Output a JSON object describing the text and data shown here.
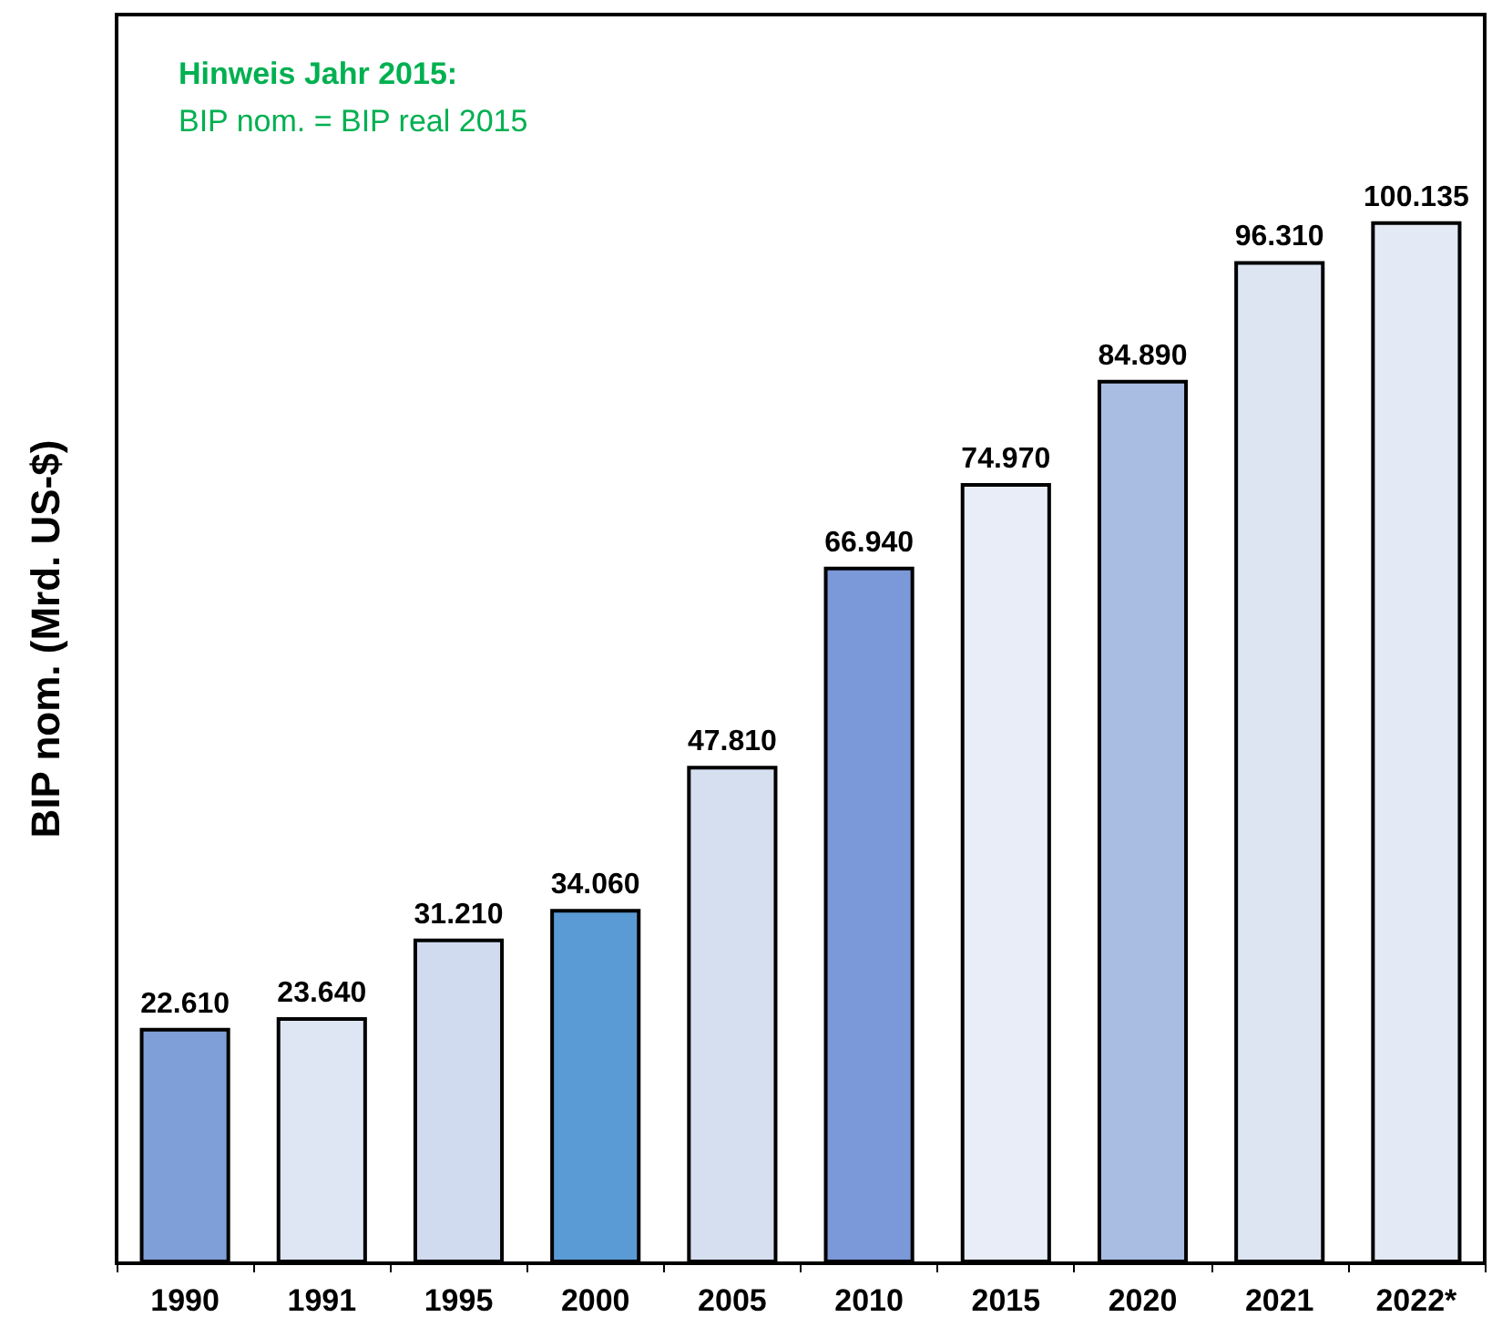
{
  "chart_data": {
    "type": "bar",
    "ylabel": "BIP nom. (Mrd. US-$)",
    "categories": [
      "1990",
      "1991",
      "1995",
      "2000",
      "2005",
      "2010",
      "2015",
      "2020",
      "2021",
      "2022*"
    ],
    "values": [
      22610,
      23640,
      31210,
      34060,
      47810,
      66940,
      74970,
      84890,
      96310,
      100135
    ],
    "value_labels": [
      "22.610",
      "23.640",
      "31.210",
      "34.060",
      "47.810",
      "66.940",
      "74.970",
      "84.890",
      "96.310",
      "100.135"
    ],
    "colors": [
      "#7f9fd8",
      "#dfe6f3",
      "#d0dbef",
      "#5a9bd5",
      "#d6dff0",
      "#7b98d8",
      "#e8edf7",
      "#a9bde3",
      "#dde5f3",
      "#e3e9f5"
    ],
    "ylim": [
      0,
      120000
    ],
    "tick_labels": "x",
    "grid": false,
    "annotations": [
      "Hinweis Jahr 2015:",
      "BIP nom. = BIP real 2015"
    ]
  }
}
